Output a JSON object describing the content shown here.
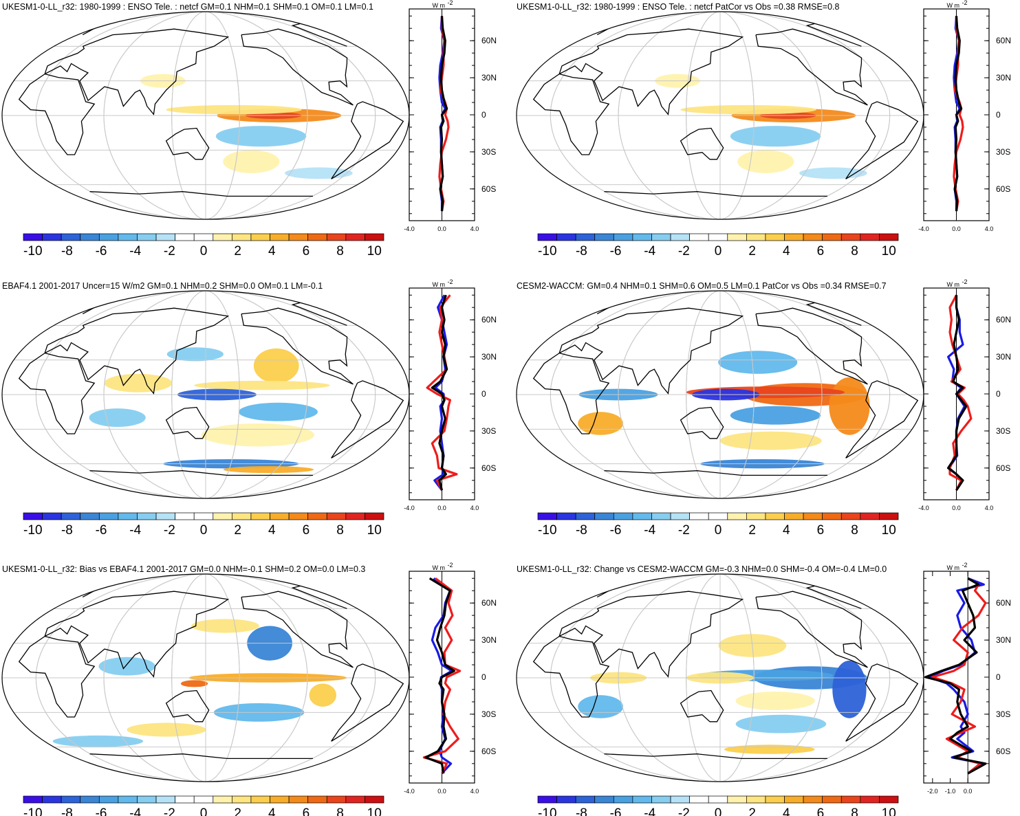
{
  "colorbar": {
    "labels": [
      "-10",
      "-8",
      "-6",
      "-4",
      "-2",
      "0",
      "2",
      "4",
      "6",
      "8",
      "10"
    ],
    "colors": [
      "#3a0fe6",
      "#2a35e0",
      "#2d62d8",
      "#3a85d6",
      "#4aa1e2",
      "#62b9ec",
      "#86cdf0",
      "#b5e2f7",
      "#ffffff",
      "#ffffff",
      "#fff2ae",
      "#fde582",
      "#fbcf4d",
      "#f8ad2a",
      "#f48a1a",
      "#ef6914",
      "#e9441c",
      "#e12421",
      "#cc0f10"
    ]
  },
  "panels": [
    {
      "id": "p1",
      "title": "UKESM1-0-LL_r32: 1980-1999 : ENSO Tele. : netcf GM=0.1 NHM=0.1 SHM=0.1 OM=0.1 LM=0.1",
      "unit_label": "W m",
      "unit_exp": "-2",
      "lat_ticks": [
        "60N",
        "30N",
        "0",
        "30S",
        "60S"
      ],
      "x_ticks": [
        "-4.0",
        "0.0",
        "4.0"
      ],
      "profile": {
        "x_range": [
          -4,
          4
        ],
        "lat": [
          80,
          70,
          60,
          50,
          40,
          30,
          20,
          10,
          5,
          0,
          -5,
          -10,
          -20,
          -30,
          -40,
          -50,
          -60,
          -70,
          -78
        ],
        "black": [
          0.0,
          0.1,
          0.4,
          0.3,
          0.0,
          -0.1,
          0.0,
          0.3,
          0.6,
          0.0,
          0.2,
          -0.1,
          0.0,
          -0.1,
          0.0,
          0.1,
          -0.2,
          0.1,
          0.0
        ],
        "red": [
          0.0,
          0.0,
          0.3,
          0.2,
          0.2,
          0.0,
          -0.2,
          0.4,
          0.6,
          0.4,
          0.7,
          0.8,
          0.5,
          0.0,
          -0.2,
          -0.3,
          -0.1,
          0.2,
          0.0
        ],
        "blue": [
          0.0,
          -0.1,
          0.3,
          0.1,
          -0.2,
          -0.3,
          -0.2,
          0.0,
          0.4,
          0.0,
          0.1,
          -0.2,
          -0.1,
          -0.1,
          0.0,
          0.1,
          -0.2,
          0.0,
          0.0
        ]
      },
      "map_blobs": [
        {
          "kind": "pos",
          "lat": 0,
          "lon": 215,
          "rlat": 6,
          "rlon": 55,
          "color": "#f48a1a"
        },
        {
          "kind": "pos",
          "lat": 0,
          "lon": 210,
          "rlat": 3,
          "rlon": 25,
          "color": "#e9441c"
        },
        {
          "kind": "pos",
          "lat": 5,
          "lon": 175,
          "rlat": 4,
          "rlon": 60,
          "color": "#fde582"
        },
        {
          "kind": "neg",
          "lat": -18,
          "lon": 200,
          "rlat": 9,
          "rlon": 40,
          "color": "#86cdf0"
        },
        {
          "kind": "pos",
          "lat": -40,
          "lon": 195,
          "rlat": 10,
          "rlon": 25,
          "color": "#fff2ae"
        },
        {
          "kind": "pos",
          "lat": 30,
          "lon": 110,
          "rlat": 6,
          "rlon": 20,
          "color": "#fff2ae"
        },
        {
          "kind": "neg",
          "lat": -50,
          "lon": 270,
          "rlat": 5,
          "rlon": 30,
          "color": "#b5e2f7"
        }
      ]
    },
    {
      "id": "p2",
      "title": "UKESM1-0-LL_r32: 1980-1999 : ENSO Tele. : netcf PatCor vs Obs =0.38 RMSE=0.8",
      "unit_label": "W m",
      "unit_exp": "-2",
      "lat_ticks": [
        "60N",
        "30N",
        "0",
        "30S",
        "60S"
      ],
      "x_ticks": [
        "-4.0",
        "0.0",
        "4.0"
      ],
      "profile": {
        "x_range": [
          -4,
          4
        ],
        "lat": [
          80,
          70,
          60,
          50,
          40,
          30,
          20,
          10,
          5,
          0,
          -5,
          -10,
          -20,
          -30,
          -40,
          -50,
          -60,
          -70,
          -78
        ],
        "black": [
          0.0,
          0.1,
          0.4,
          0.3,
          0.0,
          -0.1,
          0.0,
          0.3,
          0.6,
          0.0,
          0.2,
          -0.1,
          0.0,
          -0.1,
          0.0,
          0.1,
          -0.2,
          0.1,
          0.0
        ],
        "red": [
          0.0,
          0.0,
          0.3,
          0.2,
          0.2,
          0.0,
          -0.2,
          0.4,
          0.6,
          0.4,
          0.7,
          0.8,
          0.5,
          0.0,
          -0.2,
          -0.3,
          -0.1,
          0.2,
          0.0
        ],
        "blue": [
          0.0,
          -0.1,
          0.3,
          0.1,
          -0.2,
          -0.3,
          -0.2,
          0.0,
          0.4,
          0.0,
          0.1,
          -0.2,
          -0.1,
          -0.1,
          0.0,
          0.1,
          -0.2,
          0.0,
          0.0
        ]
      },
      "map_blobs": [
        {
          "kind": "pos",
          "lat": 0,
          "lon": 215,
          "rlat": 6,
          "rlon": 55,
          "color": "#f48a1a"
        },
        {
          "kind": "pos",
          "lat": 0,
          "lon": 210,
          "rlat": 3,
          "rlon": 25,
          "color": "#e9441c"
        },
        {
          "kind": "pos",
          "lat": 5,
          "lon": 175,
          "rlat": 4,
          "rlon": 60,
          "color": "#fde582"
        },
        {
          "kind": "neg",
          "lat": -18,
          "lon": 200,
          "rlat": 9,
          "rlon": 40,
          "color": "#86cdf0"
        },
        {
          "kind": "pos",
          "lat": -40,
          "lon": 195,
          "rlat": 10,
          "rlon": 25,
          "color": "#fff2ae"
        },
        {
          "kind": "pos",
          "lat": 30,
          "lon": 110,
          "rlat": 6,
          "rlon": 20,
          "color": "#fff2ae"
        },
        {
          "kind": "neg",
          "lat": -50,
          "lon": 270,
          "rlat": 5,
          "rlon": 30,
          "color": "#b5e2f7"
        }
      ]
    },
    {
      "id": "p3",
      "title": "EBAF4.1 2001-2017 Uncer=15 W/m2 GM=0.1 NHM=0.2 SHM=0.0 OM=0.1 LM=-0.1",
      "unit_label": "W m",
      "unit_exp": "-2",
      "lat_ticks": [
        "60N",
        "30N",
        "0",
        "30S",
        "60S"
      ],
      "x_ticks": [
        "-4.0",
        "0.0",
        "4.0"
      ],
      "profile": {
        "x_range": [
          -4,
          4
        ],
        "lat": [
          80,
          70,
          60,
          50,
          40,
          30,
          20,
          10,
          5,
          0,
          -5,
          -10,
          -20,
          -30,
          -40,
          -50,
          -60,
          -65,
          -70,
          -78
        ],
        "black": [
          0.5,
          0.0,
          0.3,
          0.0,
          0.4,
          0.2,
          0.6,
          -0.2,
          -1.2,
          0.0,
          0.3,
          0.0,
          0.4,
          0.0,
          -0.3,
          0.2,
          0.0,
          0.5,
          -0.3,
          0.0
        ],
        "red": [
          1.0,
          -0.2,
          0.0,
          -0.3,
          0.0,
          0.3,
          0.6,
          -1.0,
          -1.8,
          -0.6,
          1.0,
          0.8,
          0.6,
          0.3,
          -1.2,
          -0.6,
          -0.4,
          1.8,
          -0.6,
          0.0
        ],
        "blue": [
          0.3,
          -0.5,
          0.0,
          0.3,
          0.6,
          0.2,
          0.4,
          0.0,
          -0.8,
          0.2,
          0.3,
          -0.2,
          0.0,
          -0.2,
          0.0,
          0.2,
          0.0,
          0.2,
          -0.9,
          0.0
        ]
      },
      "map_blobs": [
        {
          "kind": "pos",
          "lat": 25,
          "lon": 215,
          "rlat": 15,
          "rlon": 20,
          "color": "#fbcf4d"
        },
        {
          "kind": "pos",
          "lat": 8,
          "lon": 200,
          "rlat": 4,
          "rlon": 60,
          "color": "#fde582"
        },
        {
          "kind": "neg",
          "lat": 0,
          "lon": 160,
          "rlat": 5,
          "rlon": 35,
          "color": "#2d62d8"
        },
        {
          "kind": "neg",
          "lat": -15,
          "lon": 215,
          "rlat": 8,
          "rlon": 35,
          "color": "#62b9ec"
        },
        {
          "kind": "pos",
          "lat": -35,
          "lon": 200,
          "rlat": 10,
          "rlon": 50,
          "color": "#fff2ae"
        },
        {
          "kind": "neg",
          "lat": -60,
          "lon": 180,
          "rlat": 4,
          "rlon": 60,
          "color": "#3a85d6"
        },
        {
          "kind": "pos",
          "lat": -65,
          "lon": 230,
          "rlat": 3,
          "rlon": 40,
          "color": "#f8ad2a"
        },
        {
          "kind": "neg",
          "lat": 35,
          "lon": 140,
          "rlat": 6,
          "rlon": 25,
          "color": "#86cdf0"
        },
        {
          "kind": "pos",
          "lat": 10,
          "lon": 90,
          "rlat": 8,
          "rlon": 30,
          "color": "#fde582"
        },
        {
          "kind": "neg",
          "lat": -20,
          "lon": 70,
          "rlat": 8,
          "rlon": 25,
          "color": "#86cdf0"
        }
      ]
    },
    {
      "id": "p4",
      "title": "CESM2-WACCM: GM=0.4 NHM=0.1 SHM=0.6 OM=0.5 LM=0.1 PatCor vs Obs =0.34 RMSE=0.7",
      "unit_label": "W m",
      "unit_exp": "-2",
      "lat_ticks": [
        "60N",
        "30N",
        "0",
        "30S",
        "60S"
      ],
      "x_ticks": [
        "-4.0",
        "0.0",
        "4.0"
      ],
      "profile": {
        "x_range": [
          -4,
          4
        ],
        "lat": [
          80,
          70,
          60,
          50,
          40,
          30,
          20,
          10,
          5,
          0,
          -5,
          -10,
          -20,
          -30,
          -40,
          -50,
          -60,
          -65,
          -70,
          -78
        ],
        "black": [
          0.0,
          0.0,
          0.3,
          0.0,
          -0.3,
          0.0,
          0.2,
          -0.4,
          0.8,
          0.0,
          0.6,
          1.2,
          0.3,
          0.0,
          0.0,
          0.0,
          -1.0,
          0.0,
          0.8,
          0.0
        ],
        "red": [
          0.0,
          -0.8,
          -0.6,
          -0.8,
          -0.5,
          0.0,
          0.5,
          -0.6,
          1.0,
          0.2,
          0.9,
          1.4,
          1.8,
          0.6,
          -0.4,
          -0.2,
          -0.8,
          -0.8,
          0.6,
          0.0
        ],
        "blue": [
          0.0,
          0.0,
          0.4,
          0.4,
          0.8,
          -1.0,
          -0.3,
          -0.5,
          0.6,
          0.0,
          0.5,
          1.0,
          0.2,
          0.0,
          0.0,
          0.1,
          -0.9,
          0.0,
          0.7,
          0.0
        ]
      },
      "map_blobs": [
        {
          "kind": "pos",
          "lat": 0,
          "lon": 225,
          "rlat": 10,
          "rlon": 55,
          "color": "#ef6914"
        },
        {
          "kind": "pos",
          "lat": -10,
          "lon": 265,
          "rlat": 25,
          "rlon": 18,
          "color": "#f48a1a"
        },
        {
          "kind": "pos",
          "lat": 2,
          "lon": 190,
          "rlat": 5,
          "rlon": 70,
          "color": "#e9441c"
        },
        {
          "kind": "neg",
          "lat": 0,
          "lon": 155,
          "rlat": 5,
          "rlon": 30,
          "color": "#2a35e0"
        },
        {
          "kind": "neg",
          "lat": 28,
          "lon": 185,
          "rlat": 10,
          "rlon": 35,
          "color": "#62b9ec"
        },
        {
          "kind": "neg",
          "lat": -18,
          "lon": 200,
          "rlat": 8,
          "rlon": 40,
          "color": "#4aa1e2"
        },
        {
          "kind": "pos",
          "lat": -25,
          "lon": 40,
          "rlat": 10,
          "rlon": 20,
          "color": "#f8ad2a"
        },
        {
          "kind": "neg",
          "lat": -60,
          "lon": 200,
          "rlat": 4,
          "rlon": 55,
          "color": "#3a85d6"
        },
        {
          "kind": "pos",
          "lat": -40,
          "lon": 200,
          "rlat": 8,
          "rlon": 45,
          "color": "#fde582"
        },
        {
          "kind": "neg",
          "lat": 0,
          "lon": 60,
          "rlat": 5,
          "rlon": 35,
          "color": "#4aa1e2"
        }
      ]
    },
    {
      "id": "p5",
      "title": "UKESM1-0-LL_r32: Bias vs EBAF4.1 2001-2017 GM=0.0 NHM=-0.1 SHM=0.2 OM=0.0 LM=0.3",
      "unit_label": "W m",
      "unit_exp": "-2",
      "lat_ticks": [
        "60N",
        "30N",
        "0",
        "30S",
        "60S"
      ],
      "x_ticks": [
        "-4.0",
        "0.0",
        "4.0"
      ],
      "profile": {
        "x_range": [
          -4,
          4
        ],
        "lat": [
          80,
          70,
          60,
          50,
          40,
          30,
          20,
          10,
          5,
          0,
          -5,
          -10,
          -20,
          -30,
          -40,
          -50,
          -60,
          -65,
          -70,
          -78
        ],
        "black": [
          -1.5,
          1.0,
          0.5,
          0.3,
          -0.2,
          -0.6,
          0.0,
          0.4,
          1.5,
          0.0,
          -0.3,
          0.2,
          0.0,
          0.3,
          0.2,
          0.5,
          -0.5,
          -2.0,
          0.0,
          0.2
        ],
        "red": [
          -0.8,
          1.2,
          0.8,
          1.3,
          0.4,
          1.2,
          0.3,
          0.4,
          2.2,
          0.6,
          0.4,
          1.0,
          0.4,
          0.2,
          1.0,
          2.0,
          0.4,
          -2.2,
          0.6,
          0.0
        ],
        "blue": [
          -1.0,
          1.0,
          0.4,
          0.2,
          -0.8,
          -1.2,
          -0.5,
          0.0,
          1.2,
          -0.1,
          -0.2,
          0.0,
          0.0,
          0.2,
          0.0,
          0.4,
          -0.3,
          0.0,
          1.1,
          0.0
        ]
      },
      "map_blobs": [
        {
          "kind": "neg",
          "lat": 30,
          "lon": 210,
          "rlat": 15,
          "rlon": 20,
          "color": "#3a85d6"
        },
        {
          "kind": "pos",
          "lat": 0,
          "lon": 205,
          "rlat": 4,
          "rlon": 70,
          "color": "#f8ad2a"
        },
        {
          "kind": "pos",
          "lat": -5,
          "lon": 140,
          "rlat": 3,
          "rlon": 12,
          "color": "#ef6914"
        },
        {
          "kind": "pos",
          "lat": -15,
          "lon": 255,
          "rlat": 10,
          "rlon": 12,
          "color": "#fbcf4d"
        },
        {
          "kind": "neg",
          "lat": -30,
          "lon": 200,
          "rlat": 8,
          "rlon": 40,
          "color": "#62b9ec"
        },
        {
          "kind": "pos",
          "lat": -45,
          "lon": 110,
          "rlat": 6,
          "rlon": 35,
          "color": "#fde582"
        },
        {
          "kind": "neg",
          "lat": -55,
          "lon": 30,
          "rlat": 5,
          "rlon": 40,
          "color": "#86cdf0"
        },
        {
          "kind": "pos",
          "lat": 45,
          "lon": 170,
          "rlat": 6,
          "rlon": 30,
          "color": "#fde582"
        },
        {
          "kind": "neg",
          "lat": 10,
          "lon": 80,
          "rlat": 8,
          "rlon": 25,
          "color": "#86cdf0"
        }
      ]
    },
    {
      "id": "p6",
      "title": "UKESM1-0-LL_r32: Change vs CESM2-WACCM GM=-0.3 NHM=0.0 SHM=-0.4 OM=-0.4 LM=0.0",
      "unit_label": "W m",
      "unit_exp": "-2",
      "lat_ticks": [
        "60N",
        "30N",
        "0",
        "30S",
        "60S"
      ],
      "x_ticks": [
        "-2.0",
        "-1.0",
        "0.0"
      ],
      "profile": {
        "x_range": [
          -2.5,
          1.2
        ],
        "lat": [
          80,
          75,
          70,
          60,
          50,
          40,
          30,
          20,
          10,
          5,
          0,
          -5,
          -10,
          -20,
          -30,
          -40,
          -45,
          -50,
          -60,
          -65,
          -70,
          -78
        ],
        "black": [
          0.0,
          0.6,
          -0.3,
          0.0,
          0.3,
          0.4,
          -0.2,
          0.5,
          -0.5,
          -1.5,
          -2.4,
          -1.0,
          -0.5,
          -0.6,
          -0.4,
          0.0,
          -0.6,
          -1.0,
          0.2,
          -0.8,
          1.0,
          0.0
        ],
        "red": [
          0.0,
          0.6,
          0.4,
          1.0,
          0.6,
          -0.3,
          -0.8,
          0.0,
          -0.2,
          -0.8,
          -2.0,
          -0.9,
          -0.2,
          -0.4,
          -0.9,
          0.4,
          -0.4,
          -1.2,
          0.0,
          -0.6,
          0.7,
          0.0
        ],
        "blue": [
          0.0,
          0.9,
          -0.6,
          -0.2,
          -0.6,
          -0.4,
          0.2,
          0.4,
          -0.4,
          -1.4,
          -2.2,
          -1.2,
          -0.8,
          -0.2,
          0.0,
          -0.4,
          -0.2,
          -0.6,
          0.3,
          -0.9,
          0.9,
          0.0
        ]
      },
      "map_blobs": [
        {
          "kind": "neg",
          "lat": 0,
          "lon": 230,
          "rlat": 10,
          "rlon": 50,
          "color": "#3a85d6"
        },
        {
          "kind": "neg",
          "lat": -10,
          "lon": 265,
          "rlat": 25,
          "rlon": 15,
          "color": "#2d62d8"
        },
        {
          "kind": "neg",
          "lat": 2,
          "lon": 190,
          "rlat": 5,
          "rlon": 60,
          "color": "#4aa1e2"
        },
        {
          "kind": "pos",
          "lat": 0,
          "lon": 150,
          "rlat": 5,
          "rlon": 30,
          "color": "#fde582"
        },
        {
          "kind": "pos",
          "lat": 28,
          "lon": 180,
          "rlat": 10,
          "rlon": 30,
          "color": "#fde582"
        },
        {
          "kind": "pos",
          "lat": -20,
          "lon": 200,
          "rlat": 8,
          "rlon": 35,
          "color": "#fff2ae"
        },
        {
          "kind": "neg",
          "lat": -25,
          "lon": 40,
          "rlat": 10,
          "rlon": 20,
          "color": "#62b9ec"
        },
        {
          "kind": "pos",
          "lat": -62,
          "lon": 210,
          "rlat": 4,
          "rlon": 40,
          "color": "#fbcf4d"
        },
        {
          "kind": "neg",
          "lat": -40,
          "lon": 210,
          "rlat": 8,
          "rlon": 40,
          "color": "#86cdf0"
        },
        {
          "kind": "pos",
          "lat": 0,
          "lon": 60,
          "rlat": 5,
          "rlon": 25,
          "color": "#fde582"
        }
      ]
    }
  ]
}
